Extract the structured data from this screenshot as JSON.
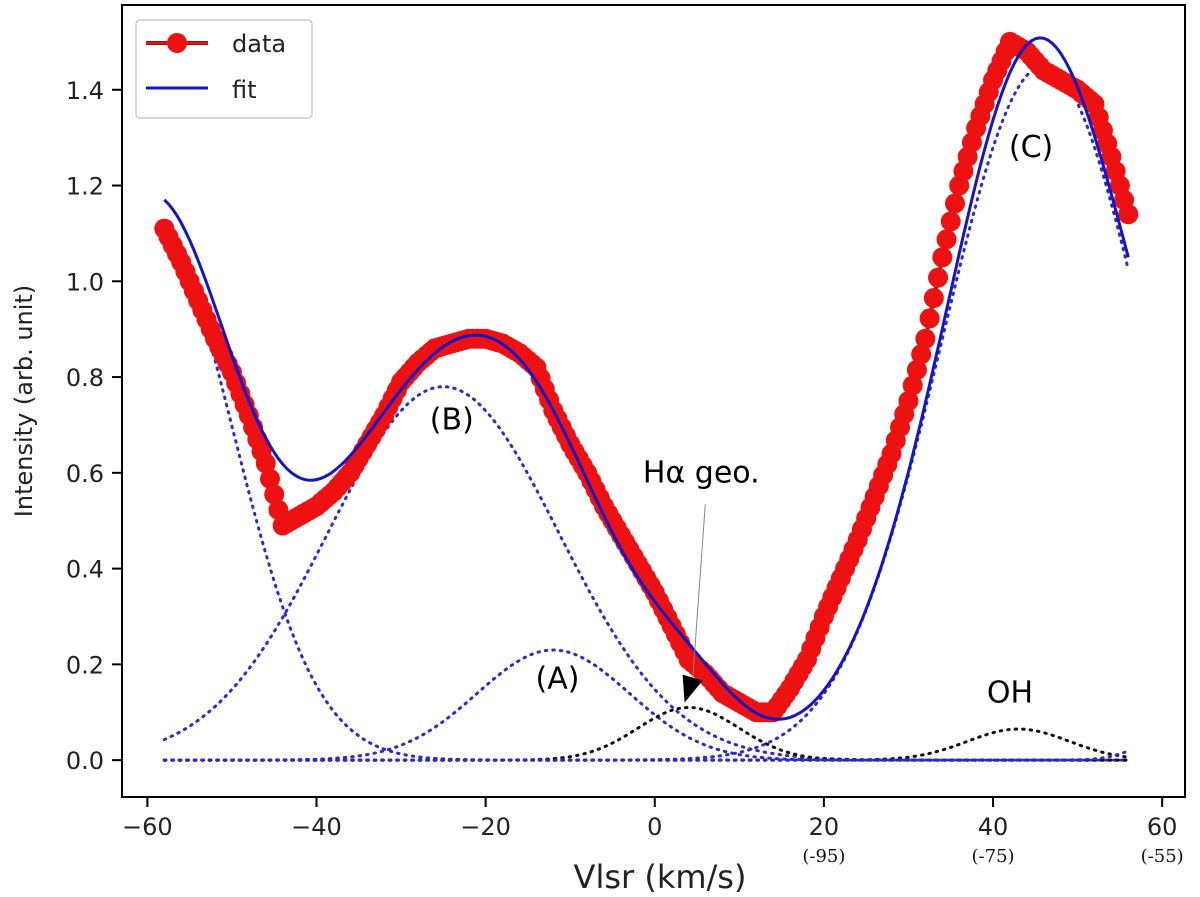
{
  "chart_data": {
    "type": "line",
    "xlabel": "Vlsr (km/s)",
    "ylabel": "Intensity (arb. unit)",
    "xlim": [
      -63,
      62.7
    ],
    "ylim": [
      -0.077,
      1.577
    ],
    "grid": false,
    "legend": {
      "placement": "top-left",
      "entries": [
        "data",
        "fit"
      ]
    },
    "x_ticks": [
      -60,
      -40,
      -20,
      0,
      20,
      40,
      60
    ],
    "x_tick_labels": [
      "−60",
      "−40",
      "−20",
      "0",
      "20",
      "40",
      "60"
    ],
    "x_secondary_tick_labels": [
      {
        "x": 20,
        "label": "(-95)"
      },
      {
        "x": 40,
        "label": "(-75)"
      },
      {
        "x": 60,
        "label": "(-55)"
      }
    ],
    "y_ticks": [
      0.0,
      0.2,
      0.4,
      0.6,
      0.8,
      1.0,
      1.2,
      1.4
    ],
    "y_tick_labels": [
      "0.0",
      "0.2",
      "0.4",
      "0.6",
      "0.8",
      "1.0",
      "1.2",
      "1.4"
    ],
    "colors": {
      "data": "#ee1111",
      "data_edge": "#8b1a1a",
      "fit": "#1515c8",
      "component_blue": "#2a2ad0",
      "component_black": "#111111"
    },
    "series": [
      {
        "name": "data",
        "style": "markers-line",
        "x": [
          -58,
          -56,
          -54,
          -52,
          -50,
          -48,
          -46,
          -44,
          -42,
          -40,
          -38,
          -36,
          -34,
          -32,
          -30,
          -28,
          -26,
          -24,
          -22,
          -20,
          -18,
          -16,
          -14,
          -12,
          -10,
          -8,
          -6,
          -4,
          -2,
          0,
          2,
          4,
          6,
          8,
          10,
          12,
          14,
          16,
          18,
          20,
          22,
          24,
          26,
          28,
          30,
          32,
          34,
          36,
          38,
          40,
          42,
          44,
          46,
          48,
          50,
          52,
          54,
          56
        ],
        "y": [
          1.11,
          1.04,
          0.96,
          0.88,
          0.81,
          0.72,
          0.62,
          0.49,
          0.51,
          0.53,
          0.56,
          0.6,
          0.66,
          0.72,
          0.79,
          0.83,
          0.86,
          0.87,
          0.88,
          0.88,
          0.87,
          0.85,
          0.82,
          0.73,
          0.66,
          0.6,
          0.53,
          0.47,
          0.41,
          0.35,
          0.28,
          0.21,
          0.18,
          0.14,
          0.12,
          0.1,
          0.1,
          0.15,
          0.21,
          0.3,
          0.38,
          0.46,
          0.55,
          0.64,
          0.75,
          0.88,
          1.05,
          1.2,
          1.32,
          1.42,
          1.5,
          1.48,
          1.44,
          1.42,
          1.4,
          1.37,
          1.26,
          1.14
        ]
      },
      {
        "name": "fit",
        "style": "line",
        "x_range": [
          -58,
          56
        ],
        "sum_of_components": true
      }
    ],
    "components": [
      {
        "label": "",
        "color": "blue",
        "amplitude": 1.15,
        "center": -60,
        "sigma": 10
      },
      {
        "label": "(B)",
        "color": "blue",
        "amplitude": 0.78,
        "center": -25,
        "sigma": 13.7
      },
      {
        "label": "(A)",
        "color": "blue",
        "amplitude": 0.23,
        "center": -12,
        "sigma": 9
      },
      {
        "label": "Hα geo.",
        "color": "black",
        "amplitude": 0.11,
        "center": 4,
        "sigma": 6
      },
      {
        "label": "(C)",
        "color": "blue",
        "amplitude": 1.45,
        "center": 46,
        "sigma": 12
      },
      {
        "label": "OH",
        "color": "black",
        "amplitude": 0.065,
        "center": 43,
        "sigma": 6
      },
      {
        "label": "",
        "color": "blue",
        "amplitude": 0.06,
        "center": 62,
        "sigma": 4
      }
    ],
    "annotations": [
      {
        "text": "(B)",
        "x": -24,
        "y": 0.69
      },
      {
        "text": "(A)",
        "x": -11.5,
        "y": 0.15
      },
      {
        "text": "(C)",
        "x": 44.5,
        "y": 1.26
      },
      {
        "text": "OH",
        "x": 42,
        "y": 0.12
      },
      {
        "text": "Hα geo.",
        "x": 5.5,
        "y": 0.58,
        "arrow_to": {
          "x": 4,
          "y": 0.12
        }
      }
    ]
  }
}
